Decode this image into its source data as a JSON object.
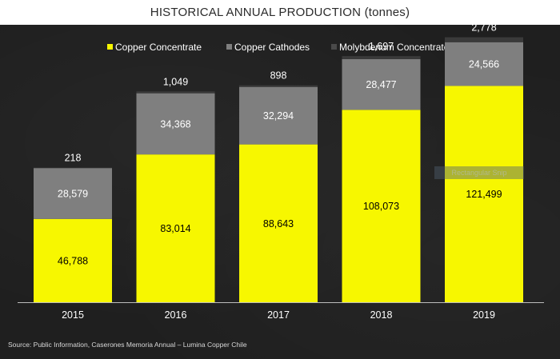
{
  "title": "HISTORICAL ANNUAL PRODUCTION (tonnes)",
  "source": "Source: Public Information, Caserones Memoria Annual – Lumina Copper Chile",
  "overlay_label": "Rectangular Snip",
  "colors": {
    "copper_concentrate": "#f7f700",
    "copper_cathodes": "#7f7f7f",
    "molybdenum_concentrate": "#3a3a3a",
    "background": "#1e1e1e",
    "text": "#ffffff"
  },
  "chart_data": {
    "type": "bar",
    "stacked": true,
    "title": "HISTORICAL ANNUAL PRODUCTION (tonnes)",
    "categories": [
      "2015",
      "2016",
      "2017",
      "2018",
      "2019"
    ],
    "series": [
      {
        "name": "Copper Concentrate",
        "values": [
          46788,
          83014,
          88643,
          108073,
          121499
        ],
        "labels": [
          "46,788",
          "83,014",
          "88,643",
          "108,073",
          "121,499"
        ]
      },
      {
        "name": "Copper Cathodes",
        "values": [
          28579,
          34368,
          32294,
          28477,
          24566
        ],
        "labels": [
          "28,579",
          "34,368",
          "32,294",
          "28,477",
          "24,566"
        ]
      },
      {
        "name": "Molybdenum Concentrate",
        "values": [
          218,
          1049,
          898,
          1697,
          2778
        ],
        "labels": [
          "218",
          "1,049",
          "898",
          "1,697",
          "2,778"
        ]
      }
    ],
    "legend_position": "top",
    "grid": false,
    "ylim": [
      0,
      150000
    ]
  }
}
